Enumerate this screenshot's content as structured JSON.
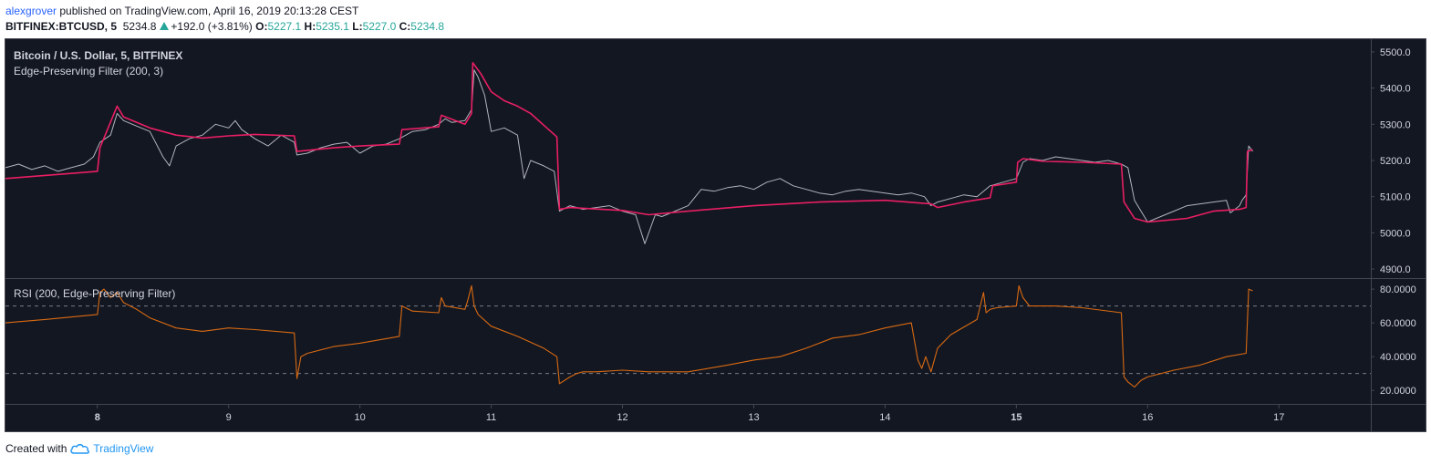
{
  "header": {
    "user": "alexgrover",
    "published": " published on TradingView.com, April 16, 2019 20:13:28 CEST",
    "symbol": "BITFINEX:BTCUSD, 5",
    "last": "5234.8",
    "change": "+192.0 (+3.81%)",
    "o_label": "O:",
    "o": "5227.1",
    "h_label": "H:",
    "h": "5235.1",
    "l_label": "L:",
    "l": "5227.0",
    "c_label": "C:",
    "c": "5234.8"
  },
  "footer": {
    "created": "Created with",
    "brand": "TradingView"
  },
  "colors": {
    "background": "#131722",
    "price": "#b2b5be",
    "filter": "#e91e63",
    "rsi": "#d96a12",
    "axis_text": "#d1d4dc",
    "grid_dash": "#787b86",
    "separator": "#434651"
  },
  "icons": {
    "brand": "tradingview-cloud-icon",
    "up": "triangle-up-icon"
  },
  "chart_data": [
    {
      "type": "line",
      "title": "Bitcoin / U.S. Dollar, 5, BITFINEX",
      "subtitle": "Edge-Preserving Filter (200, 3)",
      "ylim": [
        4875,
        5535
      ],
      "yticks": [
        4900,
        5000,
        5100,
        5200,
        5300,
        5400,
        5500
      ],
      "ytick_labels": [
        "4900.0",
        "5000.0",
        "5100.0",
        "5200.0",
        "5300.0",
        "5400.0",
        "5500.0"
      ],
      "series": [
        {
          "role": "price",
          "x": [
            7.3,
            7.4,
            7.5,
            7.6,
            7.7,
            7.8,
            7.9,
            7.97,
            8.02,
            8.1,
            8.15,
            8.2,
            8.3,
            8.4,
            8.5,
            8.55,
            8.6,
            8.7,
            8.8,
            8.9,
            9.0,
            9.05,
            9.1,
            9.2,
            9.3,
            9.4,
            9.5,
            9.52,
            9.6,
            9.7,
            9.8,
            9.9,
            10.0,
            10.1,
            10.2,
            10.3,
            10.35,
            10.4,
            10.5,
            10.6,
            10.65,
            10.7,
            10.8,
            10.85,
            10.87,
            10.9,
            10.95,
            11.0,
            11.1,
            11.2,
            11.25,
            11.3,
            11.4,
            11.48,
            11.52,
            11.6,
            11.7,
            11.8,
            11.9,
            12.0,
            12.1,
            12.17,
            12.25,
            12.3,
            12.4,
            12.5,
            12.6,
            12.7,
            12.8,
            12.9,
            13.0,
            13.1,
            13.2,
            13.3,
            13.4,
            13.5,
            13.6,
            13.7,
            13.8,
            13.9,
            14.0,
            14.1,
            14.2,
            14.3,
            14.35,
            14.4,
            14.5,
            14.6,
            14.7,
            14.75,
            14.8,
            14.9,
            15.0,
            15.05,
            15.1,
            15.2,
            15.3,
            15.4,
            15.5,
            15.6,
            15.7,
            15.8,
            15.85,
            15.9,
            16.0,
            16.1,
            16.2,
            16.3,
            16.4,
            16.5,
            16.6,
            16.63,
            16.7,
            16.72,
            16.75,
            16.77,
            16.8
          ],
          "y": [
            5180,
            5190,
            5175,
            5185,
            5170,
            5180,
            5190,
            5210,
            5250,
            5270,
            5330,
            5310,
            5295,
            5280,
            5210,
            5185,
            5240,
            5260,
            5270,
            5300,
            5290,
            5310,
            5285,
            5260,
            5240,
            5270,
            5250,
            5215,
            5220,
            5235,
            5245,
            5250,
            5220,
            5240,
            5245,
            5260,
            5270,
            5280,
            5285,
            5300,
            5315,
            5305,
            5310,
            5340,
            5450,
            5430,
            5380,
            5280,
            5290,
            5270,
            5150,
            5200,
            5185,
            5170,
            5060,
            5075,
            5065,
            5070,
            5075,
            5060,
            5050,
            4970,
            5050,
            5045,
            5060,
            5075,
            5120,
            5115,
            5125,
            5130,
            5120,
            5140,
            5150,
            5130,
            5120,
            5110,
            5105,
            5115,
            5120,
            5115,
            5110,
            5105,
            5110,
            5100,
            5075,
            5085,
            5095,
            5105,
            5100,
            5115,
            5130,
            5140,
            5150,
            5195,
            5205,
            5200,
            5210,
            5205,
            5200,
            5195,
            5200,
            5190,
            5180,
            5090,
            5030,
            5045,
            5060,
            5075,
            5080,
            5085,
            5090,
            5055,
            5075,
            5090,
            5105,
            5240,
            5225
          ]
        },
        {
          "role": "filter",
          "x": [
            7.3,
            8.0,
            8.02,
            8.15,
            8.2,
            8.4,
            8.6,
            8.8,
            9.0,
            9.2,
            9.5,
            9.52,
            9.8,
            10.0,
            10.3,
            10.32,
            10.6,
            10.62,
            10.8,
            10.85,
            10.86,
            10.92,
            11.0,
            11.1,
            11.2,
            11.3,
            11.5,
            11.52,
            11.6,
            12.0,
            12.2,
            12.5,
            13.0,
            13.5,
            14.0,
            14.35,
            14.4,
            14.6,
            14.8,
            14.82,
            15.0,
            15.01,
            15.05,
            15.2,
            15.5,
            15.8,
            15.82,
            15.9,
            16.0,
            16.3,
            16.5,
            16.7,
            16.75,
            16.76,
            16.8
          ],
          "y": [
            5150,
            5170,
            5235,
            5350,
            5320,
            5290,
            5270,
            5262,
            5268,
            5272,
            5268,
            5225,
            5235,
            5240,
            5245,
            5285,
            5293,
            5325,
            5300,
            5330,
            5470,
            5440,
            5390,
            5365,
            5350,
            5330,
            5265,
            5065,
            5070,
            5062,
            5050,
            5060,
            5075,
            5085,
            5090,
            5080,
            5070,
            5085,
            5097,
            5130,
            5140,
            5195,
            5205,
            5198,
            5195,
            5190,
            5085,
            5040,
            5030,
            5040,
            5060,
            5065,
            5070,
            5225,
            5230
          ]
        }
      ]
    },
    {
      "type": "line",
      "title": "RSI (200, Edge-Preserving Filter)",
      "ylim": [
        12,
        86
      ],
      "yticks": [
        20,
        40,
        60,
        80
      ],
      "ytick_labels": [
        "20.0000",
        "40.0000",
        "60.0000",
        "80.0000"
      ],
      "hlines": [
        70,
        30
      ],
      "xticks": [
        8,
        9,
        10,
        11,
        12,
        13,
        14,
        15,
        16,
        17
      ],
      "xtick_labels": [
        "8",
        "9",
        "10",
        "11",
        "12",
        "13",
        "14",
        "15",
        "16",
        "17"
      ],
      "bold_xticks": [
        8,
        15
      ],
      "xlim": [
        7.3,
        17.7
      ],
      "series": [
        {
          "role": "rsi",
          "x": [
            7.3,
            7.6,
            8.0,
            8.02,
            8.05,
            8.1,
            8.15,
            8.2,
            8.3,
            8.4,
            8.6,
            8.8,
            9.0,
            9.2,
            9.5,
            9.52,
            9.55,
            9.6,
            9.8,
            10.0,
            10.3,
            10.32,
            10.4,
            10.6,
            10.62,
            10.65,
            10.8,
            10.82,
            10.85,
            10.87,
            10.9,
            11.0,
            11.2,
            11.4,
            11.5,
            11.52,
            11.6,
            11.65,
            11.7,
            11.8,
            12.0,
            12.2,
            12.5,
            12.8,
            13.0,
            13.2,
            13.4,
            13.6,
            13.8,
            14.0,
            14.2,
            14.25,
            14.28,
            14.31,
            14.35,
            14.4,
            14.5,
            14.7,
            14.75,
            14.77,
            14.8,
            14.85,
            15.0,
            15.02,
            15.05,
            15.1,
            15.3,
            15.5,
            15.8,
            15.82,
            15.85,
            15.9,
            15.95,
            16.0,
            16.2,
            16.4,
            16.6,
            16.75,
            16.77,
            16.8
          ],
          "y": [
            60,
            62,
            65,
            78,
            80,
            75,
            78,
            72,
            68,
            63,
            57,
            55,
            57,
            56,
            54,
            27,
            40,
            42,
            46,
            48,
            52,
            70,
            67,
            66,
            75,
            70,
            68,
            73,
            82,
            70,
            65,
            58,
            52,
            45,
            40,
            24,
            28,
            30,
            31,
            31,
            32,
            31,
            31,
            35,
            38,
            40,
            45,
            51,
            53,
            57,
            60,
            38,
            33,
            40,
            31,
            45,
            53,
            62,
            78,
            66,
            68,
            69,
            70,
            82,
            75,
            70,
            70,
            69,
            66,
            28,
            25,
            22,
            26,
            28,
            32,
            35,
            40,
            42,
            80,
            79
          ]
        }
      ]
    }
  ]
}
